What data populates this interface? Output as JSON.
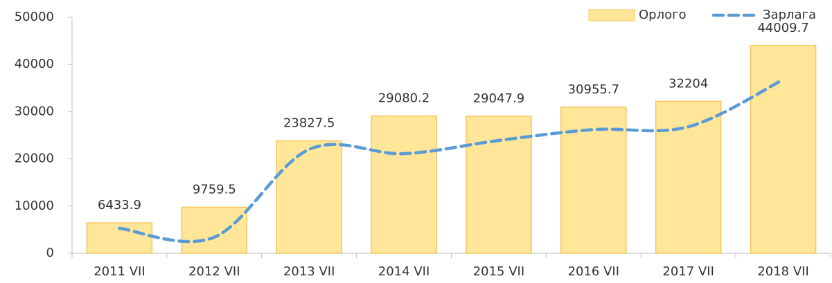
{
  "chart_data": {
    "type": "bar",
    "categories": [
      "2011 VII",
      "2012 VII",
      "2013 VII",
      "2014 VII",
      "2015 VII",
      "2016 VII",
      "2017 VII",
      "2018 VII"
    ],
    "series": [
      {
        "name": "Орлого",
        "type": "bar",
        "color": "#ffe699",
        "values": [
          6433.9,
          9759.5,
          23827.5,
          29080.2,
          29047.9,
          30955.7,
          32204,
          44009.7
        ]
      },
      {
        "name": "Зарлага",
        "type": "line",
        "color": "#5b9bd5",
        "values": [
          5300,
          3400,
          22000,
          21100,
          23900,
          26200,
          26800,
          36800
        ]
      }
    ],
    "ylim": [
      0,
      50000
    ],
    "yticks": [
      0,
      10000,
      20000,
      30000,
      40000,
      50000
    ],
    "legend": "top-right"
  }
}
